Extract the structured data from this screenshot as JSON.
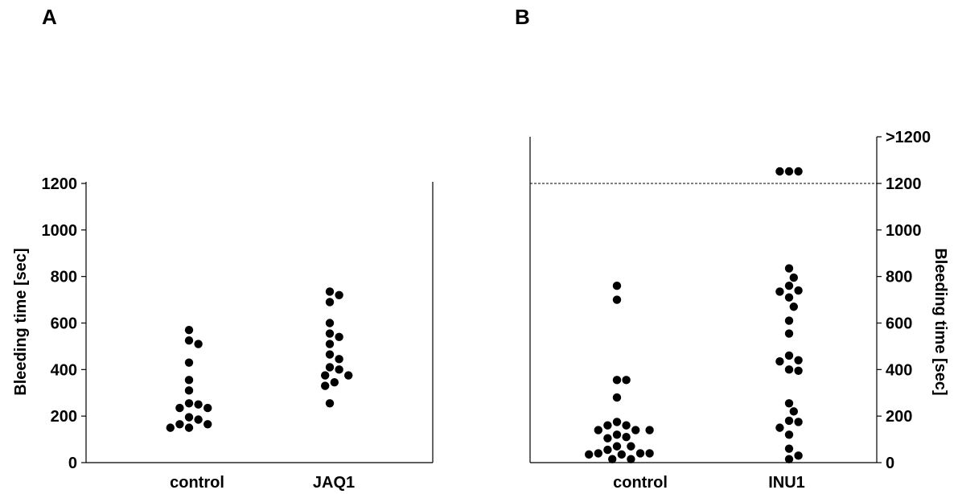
{
  "chart_data": [
    {
      "panel_label": "A",
      "type": "scatter",
      "ylabel": "Bleeding time [sec]",
      "y_axis_side": "left",
      "ylim": [
        0,
        1200
      ],
      "yticks": [
        0,
        200,
        400,
        600,
        800,
        1000,
        1200
      ],
      "categories": [
        "control",
        "JAQ1"
      ],
      "series": [
        {
          "category": "control",
          "values": [
            570,
            525,
            510,
            430,
            355,
            310,
            255,
            250,
            235,
            235,
            195,
            185,
            165,
            165,
            150,
            150
          ]
        },
        {
          "category": "JAQ1",
          "values": [
            735,
            720,
            690,
            600,
            555,
            540,
            510,
            465,
            445,
            410,
            400,
            375,
            375,
            345,
            330,
            255
          ]
        }
      ]
    },
    {
      "panel_label": "B",
      "type": "scatter",
      "ylabel": "Bleeding time [sec]",
      "y_axis_side": "right",
      "ylim": [
        0,
        1400
      ],
      "yticks": [
        0,
        200,
        400,
        600,
        800,
        1000,
        1200
      ],
      "top_tick_label": ">1200",
      "cutoff_line": 1200,
      "categories": [
        "control",
        "INU1"
      ],
      "series": [
        {
          "category": "control",
          "values": [
            760,
            700,
            355,
            355,
            280,
            175,
            160,
            160,
            140,
            140,
            140,
            120,
            110,
            105,
            70,
            70,
            55,
            40,
            40,
            40,
            35,
            35,
            15,
            15
          ]
        },
        {
          "category": "INU1",
          "values": [
            1250,
            1250,
            1250,
            835,
            795,
            760,
            740,
            735,
            710,
            670,
            610,
            555,
            460,
            440,
            435,
            400,
            395,
            255,
            220,
            180,
            175,
            150,
            120,
            60,
            30,
            15
          ]
        }
      ]
    }
  ]
}
